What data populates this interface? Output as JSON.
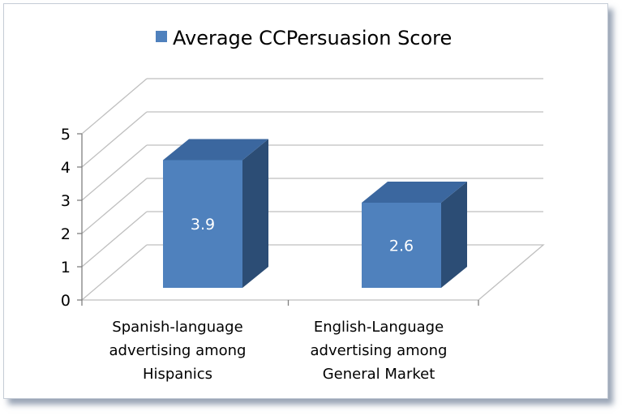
{
  "chart_data": {
    "type": "bar",
    "style": "3d-column",
    "categories": [
      [
        "Spanish-language",
        "advertising among",
        "Hispanics"
      ],
      [
        "English-Language",
        "advertising among",
        "General Market"
      ]
    ],
    "series": [
      {
        "name": "Average CCPersuasion Score",
        "values": [
          3.9,
          2.6
        ],
        "color": "#4f81bd"
      }
    ],
    "data_labels": [
      "3.9",
      "2.6"
    ],
    "y_ticks": [
      "0",
      "1",
      "2",
      "3",
      "4",
      "5"
    ],
    "ylim": [
      0,
      5
    ],
    "grid": true,
    "legend": "top"
  },
  "colors": {
    "bar_front": "#4f81bd",
    "bar_side": "#2c4d75",
    "bar_top": "#3b679f",
    "grid": "#bfbfbf"
  }
}
